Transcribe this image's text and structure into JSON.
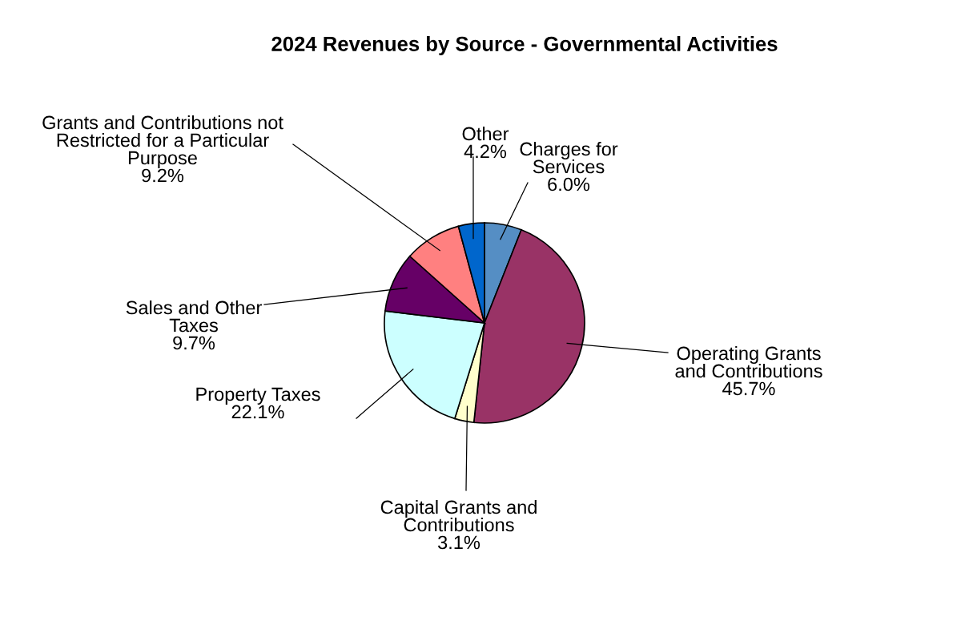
{
  "chart_data": {
    "type": "pie",
    "title": "2024 Revenues by Source - Governmental Activities",
    "categories": [
      "Charges for Services",
      "Operating Grants and Contributions",
      "Capital Grants and Contributions",
      "Property Taxes",
      "Sales and Other Taxes",
      "Grants and Contributions not Restricted for a Particular Purpose",
      "Other"
    ],
    "values": [
      6.0,
      45.7,
      3.1,
      22.1,
      9.7,
      9.2,
      4.2
    ],
    "colors": [
      "#558ec4",
      "#993366",
      "#ffffcc",
      "#ccffff",
      "#660066",
      "#ff8080",
      "#0066cc"
    ],
    "value_labels": [
      "6.0%",
      "45.7%",
      "3.1%",
      "22.1%",
      "9.7%",
      "9.2%",
      "4.2%"
    ],
    "legend": false
  }
}
